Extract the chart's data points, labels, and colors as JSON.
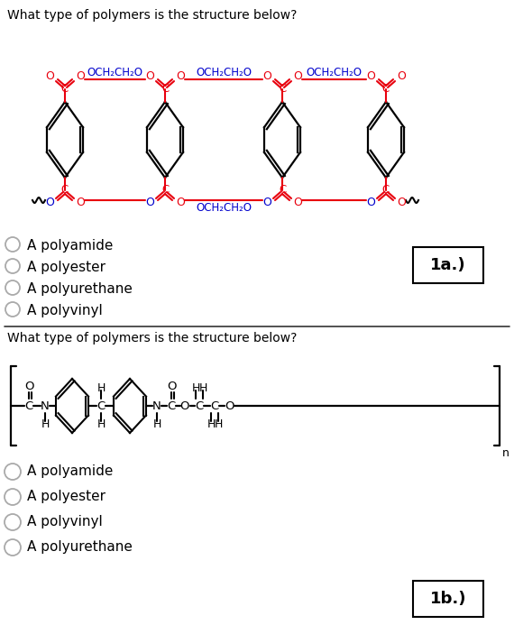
{
  "bg_color": "#ffffff",
  "q1_text": "What type of polymers is the structure below?",
  "q2_text": "What type of polymers is the structure below?",
  "q1_options": [
    "A polyamide",
    "A polyester",
    "A polyurethane",
    "A polyvinyl"
  ],
  "q2_options": [
    "A polyamide",
    "A polyester",
    "A polyvinyl",
    "A polyurethane"
  ],
  "label1": "1a.)",
  "label2": "1b.)",
  "fig_width": 5.7,
  "fig_height": 7.03,
  "dpi": 100,
  "red_color": "#e8000e",
  "blue_color": "#0000cc",
  "black_color": "#000000",
  "gray_color": "#aaaaaa"
}
